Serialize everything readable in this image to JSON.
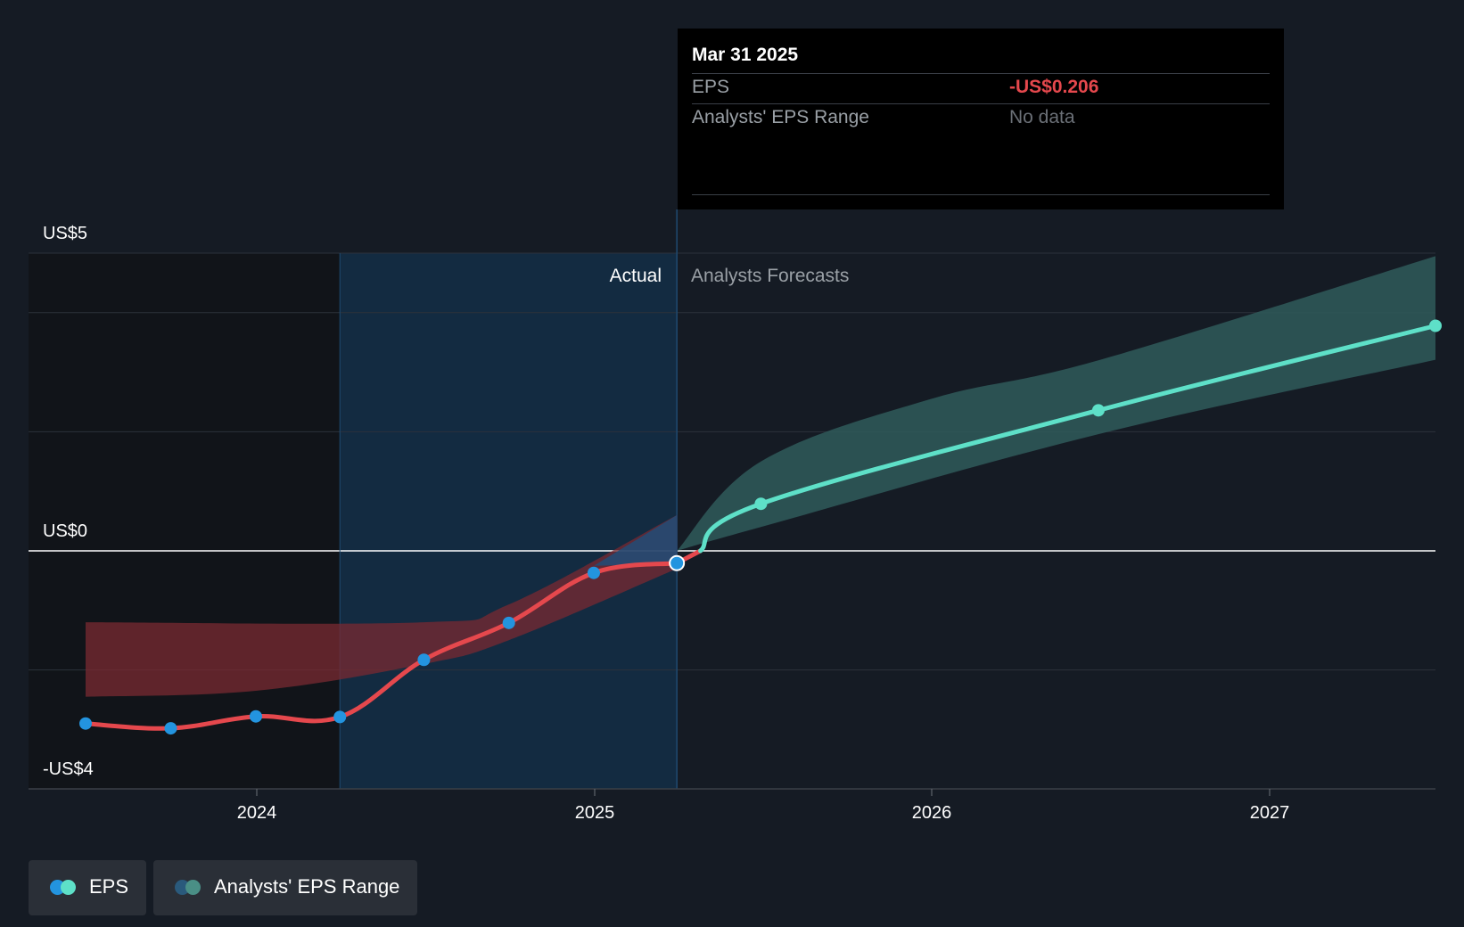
{
  "colors": {
    "eps_actual": "#e5484d",
    "eps_forecast": "#5ee0c8",
    "point_actual": "#2394df",
    "range_actual": "#7a2a32",
    "range_forecast": "#2f5a5a",
    "actual_region": "#13385a",
    "zero_line": "#ffffff"
  },
  "tooltip": {
    "date": "Mar 31 2025",
    "eps_label": "EPS",
    "eps_value": "-US$0.206",
    "range_label": "Analysts' EPS Range",
    "range_value": "No data"
  },
  "regions": {
    "actual_label": "Actual",
    "forecast_label": "Analysts Forecasts"
  },
  "legend": {
    "eps_label": "EPS",
    "range_label": "Analysts' EPS Range"
  },
  "chart_data": {
    "type": "line",
    "title": "",
    "xlabel": "",
    "ylabel": "",
    "ylim": [
      -4,
      5
    ],
    "xlim": [
      "2023-06-30",
      "2027-06-30"
    ],
    "y_ticks": [
      {
        "value": 5,
        "label": "US$5"
      },
      {
        "value": 0,
        "label": "US$0"
      },
      {
        "value": -4,
        "label": "-US$4"
      }
    ],
    "x_ticks": [
      {
        "value": "2024-01-01",
        "label": "2024"
      },
      {
        "value": "2025-01-01",
        "label": "2025"
      },
      {
        "value": "2026-01-01",
        "label": "2026"
      },
      {
        "value": "2027-01-01",
        "label": "2027"
      }
    ],
    "gridlines_y": [
      5,
      4,
      2,
      0,
      -2,
      -4
    ],
    "actual_region_start": "2024-03-31",
    "actual_end": "2025-03-31",
    "series": [
      {
        "name": "EPS",
        "kind": "actual",
        "points": [
          {
            "x": "2023-06-30",
            "y": -2.9
          },
          {
            "x": "2023-09-30",
            "y": -2.98
          },
          {
            "x": "2023-12-31",
            "y": -2.78
          },
          {
            "x": "2024-03-31",
            "y": -2.79
          },
          {
            "x": "2024-06-30",
            "y": -1.83
          },
          {
            "x": "2024-09-30",
            "y": -1.21
          },
          {
            "x": "2024-12-31",
            "y": -0.37
          },
          {
            "x": "2025-03-31",
            "y": -0.206
          }
        ]
      },
      {
        "name": "EPS",
        "kind": "forecast",
        "points": [
          {
            "x": "2025-03-31",
            "y": -0.206
          },
          {
            "x": "2025-06-30",
            "y": 0.79
          },
          {
            "x": "2026-06-30",
            "y": 2.36
          },
          {
            "x": "2027-06-30",
            "y": 3.78
          }
        ]
      }
    ],
    "ranges": [
      {
        "name": "Analysts' EPS Range",
        "kind": "actual",
        "upper": [
          {
            "x": "2023-06-30",
            "y": -1.2
          },
          {
            "x": "2024-06-30",
            "y": -1.2
          },
          {
            "x": "2024-09-30",
            "y": -0.9
          },
          {
            "x": "2025-03-31",
            "y": 0.6
          }
        ],
        "lower": [
          {
            "x": "2023-06-30",
            "y": -2.45
          },
          {
            "x": "2023-12-31",
            "y": -2.35
          },
          {
            "x": "2024-06-30",
            "y": -1.9
          },
          {
            "x": "2024-09-30",
            "y": -1.5
          },
          {
            "x": "2025-03-31",
            "y": -0.3
          }
        ]
      },
      {
        "name": "Analysts' EPS Range",
        "kind": "forecast",
        "upper": [
          {
            "x": "2025-03-31",
            "y": 0
          },
          {
            "x": "2025-06-30",
            "y": 1.5
          },
          {
            "x": "2025-12-31",
            "y": 2.55
          },
          {
            "x": "2026-06-30",
            "y": 3.2
          },
          {
            "x": "2027-06-30",
            "y": 4.95
          }
        ],
        "lower": [
          {
            "x": "2025-03-31",
            "y": 0
          },
          {
            "x": "2025-06-30",
            "y": 0.4
          },
          {
            "x": "2026-06-30",
            "y": 1.96
          },
          {
            "x": "2027-06-30",
            "y": 3.21
          }
        ]
      }
    ]
  }
}
